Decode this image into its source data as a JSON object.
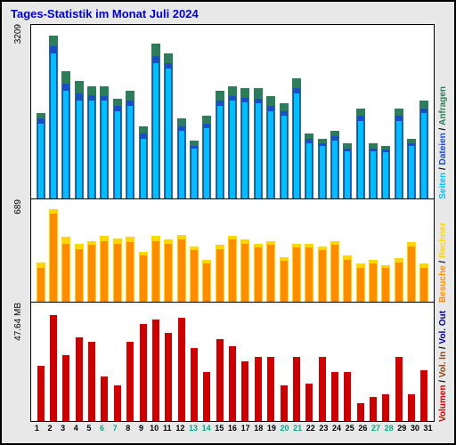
{
  "title": "Tages-Statistik im Monat Juli 2024",
  "background_color": "#e8e8e8",
  "panel_bg": "#ffffff",
  "border_color": "#000000",
  "title_color": "#0000cd",
  "days": [
    1,
    2,
    3,
    4,
    5,
    6,
    7,
    8,
    9,
    10,
    11,
    12,
    13,
    14,
    15,
    16,
    17,
    18,
    19,
    20,
    21,
    22,
    23,
    24,
    25,
    26,
    27,
    28,
    29,
    30,
    31
  ],
  "weekend_days": [
    6,
    7,
    13,
    14,
    20,
    21,
    27,
    28
  ],
  "weekday_color": "#000000",
  "weekend_color": "#00aa88",
  "panels": [
    {
      "id": "top",
      "height_ratio": 0.44,
      "ylabel": "3209",
      "ymax": 3400,
      "series": [
        {
          "key": "anfragen",
          "color": "#2e7d5a",
          "width": 10,
          "offset": 0,
          "values": [
            1700,
            3250,
            2550,
            2350,
            2250,
            2250,
            2000,
            2150,
            1450,
            3100,
            2900,
            1600,
            1150,
            1650,
            2150,
            2250,
            2200,
            2200,
            2050,
            1900,
            2400,
            1300,
            1200,
            1350,
            1100,
            1800,
            1100,
            1050,
            1800,
            1200,
            1950
          ]
        },
        {
          "key": "dateien",
          "color": "#1a4dcc",
          "width": 8,
          "offset": 1,
          "values": [
            1600,
            3050,
            2300,
            2100,
            2070,
            2050,
            1850,
            1950,
            1300,
            2850,
            2700,
            1450,
            1050,
            1500,
            1950,
            2050,
            2020,
            2000,
            1850,
            1750,
            2200,
            1200,
            1100,
            1250,
            1000,
            1650,
            1000,
            980,
            1650,
            1100,
            1800
          ]
        },
        {
          "key": "seiten",
          "color": "#00bfff",
          "width": 6,
          "offset": 2,
          "values": [
            1500,
            2900,
            2150,
            1950,
            1950,
            1950,
            1750,
            1850,
            1200,
            2700,
            2600,
            1350,
            1000,
            1400,
            1850,
            1950,
            1920,
            1900,
            1750,
            1650,
            2100,
            1100,
            1050,
            1150,
            950,
            1550,
            950,
            920,
            1550,
            1050,
            1700
          ]
        }
      ],
      "legend": [
        {
          "text": "Seiten",
          "color": "#00bfff"
        },
        {
          "text": "Dateien",
          "color": "#1a4dcc"
        },
        {
          "text": "Anfragen",
          "color": "#2e7d5a"
        }
      ]
    },
    {
      "id": "mid",
      "height_ratio": 0.26,
      "ylabel": "689",
      "ymax": 750,
      "series": [
        {
          "key": "rechner",
          "color": "#ffd700",
          "width": 10,
          "offset": 0,
          "values": [
            300,
            700,
            490,
            440,
            460,
            500,
            480,
            490,
            380,
            500,
            470,
            510,
            420,
            320,
            430,
            500,
            470,
            440,
            460,
            340,
            440,
            440,
            420,
            460,
            350,
            290,
            320,
            280,
            330,
            450,
            290
          ]
        },
        {
          "key": "besuche",
          "color": "#ff8c00",
          "width": 8,
          "offset": 1,
          "values": [
            260,
            670,
            440,
            400,
            430,
            460,
            440,
            450,
            350,
            460,
            440,
            470,
            390,
            290,
            400,
            470,
            440,
            410,
            430,
            310,
            410,
            410,
            390,
            430,
            320,
            260,
            290,
            260,
            300,
            420,
            260
          ]
        }
      ],
      "legend": [
        {
          "text": "Besuche",
          "color": "#ff8c00"
        },
        {
          "text": "Rechner",
          "color": "#ffd700"
        }
      ]
    },
    {
      "id": "bot",
      "height_ratio": 0.3,
      "ylabel": "47.64 MB",
      "ymax": 52,
      "series": [
        {
          "key": "volumen",
          "color": "#cc0000",
          "width": 8,
          "offset": 0,
          "values": [
            25,
            48,
            30,
            38,
            36,
            20,
            16,
            36,
            44,
            46,
            40,
            47,
            33,
            22,
            37,
            34,
            27,
            29,
            29,
            16,
            29,
            17,
            29,
            22,
            22,
            8,
            11,
            12,
            29,
            12,
            23
          ]
        }
      ],
      "legend": [
        {
          "text": "Volumen",
          "color": "#cc0000"
        },
        {
          "text": "Vol. In",
          "color": "#8b4513"
        },
        {
          "text": "Vol. Out",
          "color": "#000080"
        }
      ]
    }
  ]
}
